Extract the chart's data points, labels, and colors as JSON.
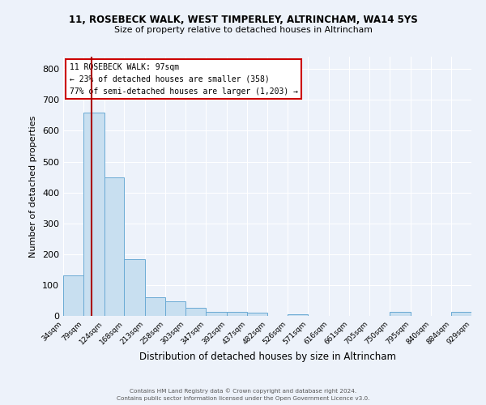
{
  "title1": "11, ROSEBECK WALK, WEST TIMPERLEY, ALTRINCHAM, WA14 5YS",
  "title2": "Size of property relative to detached houses in Altrincham",
  "xlabel": "Distribution of detached houses by size in Altrincham",
  "ylabel": "Number of detached properties",
  "bin_edges": [
    34,
    79,
    124,
    168,
    213,
    258,
    303,
    347,
    392,
    437,
    482,
    526,
    571,
    616,
    661,
    705,
    750,
    795,
    840,
    884,
    929
  ],
  "bar_heights": [
    130,
    660,
    450,
    185,
    60,
    48,
    27,
    13,
    13,
    10,
    0,
    5,
    0,
    0,
    0,
    0,
    13,
    0,
    0,
    13
  ],
  "bar_color": "#c8dff0",
  "bar_edge_color": "#6aaad4",
  "property_size": 97,
  "vline_color": "#aa0000",
  "ylim_max": 840,
  "yticks": [
    0,
    100,
    200,
    300,
    400,
    500,
    600,
    700,
    800
  ],
  "annotation_title": "11 ROSEBECK WALK: 97sqm",
  "annotation_line2": "← 23% of detached houses are smaller (358)",
  "annotation_line3": "77% of semi-detached houses are larger (1,203) →",
  "footer1": "Contains HM Land Registry data © Crown copyright and database right 2024.",
  "footer2": "Contains public sector information licensed under the Open Government Licence v3.0.",
  "bg_color": "#edf2fa",
  "grid_color": "#ffffff",
  "ann_box_color": "#ffffff",
  "ann_border_color": "#cc0000"
}
